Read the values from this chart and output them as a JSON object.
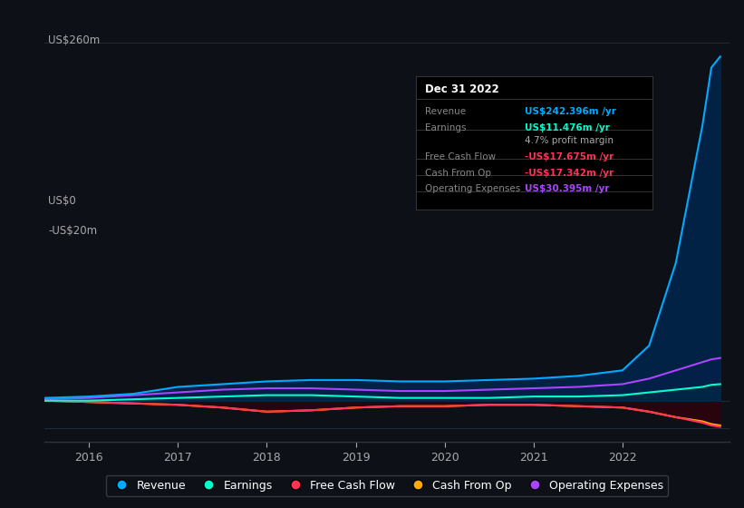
{
  "bg_color": "#0d1117",
  "plot_bg_color": "#0d1117",
  "grid_color": "#1e2a3a",
  "ylabel_us260": "US$260m",
  "ylabel_us0": "US$0",
  "ylabel_usn20": "-US$20m",
  "x_ticks": [
    2016,
    2017,
    2018,
    2019,
    2020,
    2021,
    2022
  ],
  "ylim": [
    -30,
    280
  ],
  "xlim": [
    2015.5,
    2023.2
  ],
  "series": {
    "Revenue": {
      "color": "#00aaff",
      "fill_color": "#00264d",
      "data_x": [
        2015.5,
        2016.0,
        2016.5,
        2017.0,
        2017.5,
        2018.0,
        2018.5,
        2019.0,
        2019.5,
        2020.0,
        2020.5,
        2021.0,
        2021.5,
        2022.0,
        2022.3,
        2022.6,
        2022.9,
        2023.0,
        2023.1
      ],
      "data_y": [
        2,
        3,
        5,
        10,
        12,
        14,
        15,
        15,
        14,
        14,
        15,
        16,
        18,
        22,
        40,
        100,
        200,
        242,
        250
      ]
    },
    "Earnings": {
      "color": "#00ffcc",
      "fill_color": "#003322",
      "data_x": [
        2015.5,
        2016.0,
        2016.5,
        2017.0,
        2017.5,
        2018.0,
        2018.5,
        2019.0,
        2019.5,
        2020.0,
        2020.5,
        2021.0,
        2021.5,
        2022.0,
        2022.3,
        2022.6,
        2022.9,
        2023.0,
        2023.1
      ],
      "data_y": [
        0,
        0,
        1,
        2,
        3,
        4,
        4,
        3,
        2,
        2,
        2,
        3,
        3,
        4,
        6,
        8,
        10,
        11.5,
        12
      ]
    },
    "Free Cash Flow": {
      "color": "#ff3355",
      "fill_color": "#2a0010",
      "data_x": [
        2015.5,
        2016.0,
        2016.5,
        2017.0,
        2017.5,
        2018.0,
        2018.5,
        2019.0,
        2019.5,
        2020.0,
        2020.5,
        2021.0,
        2021.5,
        2022.0,
        2022.3,
        2022.6,
        2022.9,
        2023.0,
        2023.1
      ],
      "data_y": [
        0,
        -1,
        -2,
        -3,
        -5,
        -8,
        -7,
        -5,
        -4,
        -4,
        -3,
        -3,
        -4,
        -5,
        -8,
        -12,
        -16,
        -18,
        -19
      ]
    },
    "Cash From Op": {
      "color": "#ffaa00",
      "fill_color": "#2a1a00",
      "data_x": [
        2015.5,
        2016.0,
        2016.5,
        2017.0,
        2017.5,
        2018.0,
        2018.5,
        2019.0,
        2019.5,
        2020.0,
        2020.5,
        2021.0,
        2021.5,
        2022.0,
        2022.3,
        2022.6,
        2022.9,
        2023.0,
        2023.1
      ],
      "data_y": [
        0,
        -1,
        -2,
        -3,
        -5,
        -8,
        -7,
        -5,
        -4,
        -4,
        -3,
        -3,
        -4,
        -5,
        -8,
        -12,
        -15,
        -17,
        -18
      ]
    },
    "Operating Expenses": {
      "color": "#aa44ff",
      "fill_color": "#1a0033",
      "data_x": [
        2015.5,
        2016.0,
        2016.5,
        2017.0,
        2017.5,
        2018.0,
        2018.5,
        2019.0,
        2019.5,
        2020.0,
        2020.5,
        2021.0,
        2021.5,
        2022.0,
        2022.3,
        2022.6,
        2022.9,
        2023.0,
        2023.1
      ],
      "data_y": [
        1,
        2,
        4,
        6,
        8,
        9,
        9,
        8,
        7,
        7,
        8,
        9,
        10,
        12,
        16,
        22,
        28,
        30,
        31
      ]
    }
  },
  "tooltip": {
    "date": "Dec 31 2022",
    "rows": [
      {
        "label": "Revenue",
        "value": "US$242.396m /yr",
        "value_color": "#00aaff"
      },
      {
        "label": "Earnings",
        "value": "US$11.476m /yr",
        "value_color": "#00ffcc"
      },
      {
        "label": "",
        "value": "4.7% profit margin",
        "value_color": "#aaaaaa"
      },
      {
        "label": "Free Cash Flow",
        "value": "-US$17.675m /yr",
        "value_color": "#ff3355"
      },
      {
        "label": "Cash From Op",
        "value": "-US$17.342m /yr",
        "value_color": "#ff3355"
      },
      {
        "label": "Operating Expenses",
        "value": "US$30.395m /yr",
        "value_color": "#aa44ff"
      }
    ]
  },
  "legend": [
    {
      "label": "Revenue",
      "color": "#00aaff"
    },
    {
      "label": "Earnings",
      "color": "#00ffcc"
    },
    {
      "label": "Free Cash Flow",
      "color": "#ff3355"
    },
    {
      "label": "Cash From Op",
      "color": "#ffaa00"
    },
    {
      "label": "Operating Expenses",
      "color": "#aa44ff"
    }
  ]
}
